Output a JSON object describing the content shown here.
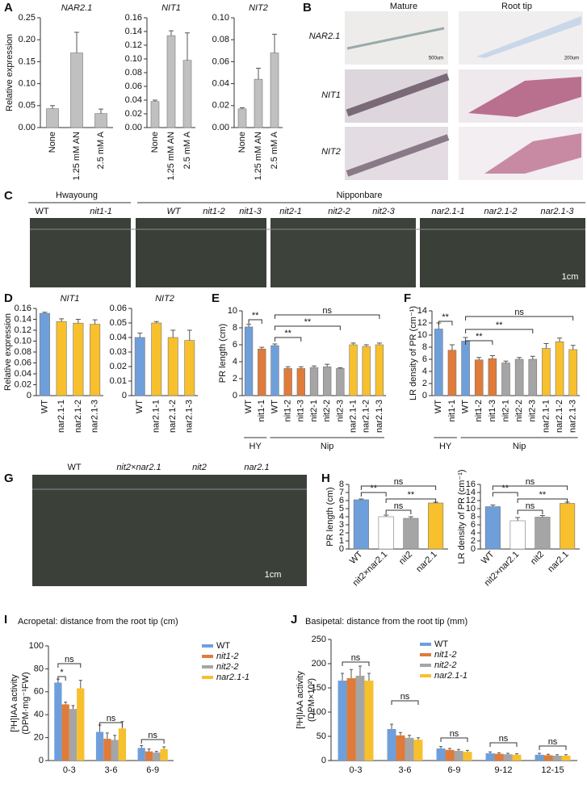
{
  "panel_letters": [
    "A",
    "B",
    "C",
    "D",
    "E",
    "F",
    "G",
    "H",
    "I",
    "J"
  ],
  "photos": {
    "B": {
      "columns": [
        "Mature",
        "Root tip"
      ],
      "rows": [
        "NAR2.1",
        "NIT1",
        "NIT2"
      ],
      "scale_bars": [
        "500um",
        "200um"
      ]
    },
    "C": {
      "groups": [
        "Hwayoung",
        "Nipponbare"
      ],
      "labels": [
        "WT",
        "nit1-1",
        "WT",
        "nit1-2",
        "nit1-3",
        "nit2-1",
        "nit2-2",
        "nit2-3",
        "nar2.1-1",
        "nar2.1-2",
        "nar2.1-3"
      ],
      "scale": "1cm"
    },
    "G": {
      "labels": [
        "WT",
        "nit2×nar2.1",
        "nit2",
        "nar2.1"
      ],
      "scale": "1cm"
    }
  },
  "chart_data": [
    {
      "type": "bar",
      "title": "NAR2.1",
      "ylabel": "Relative expression",
      "categories": [
        "None",
        "1.25 mM AN",
        "2.5 mM A"
      ],
      "values": [
        0.043,
        0.17,
        0.032
      ],
      "errors": [
        0.007,
        0.047,
        0.01
      ],
      "color": "#c0c0c0",
      "ylim": [
        0,
        0.25
      ],
      "yticks": [
        {
          "value": 0,
          "label": "0.00"
        },
        {
          "value": 0.05,
          "label": "0.05"
        },
        {
          "value": 0.1,
          "label": "0.10"
        },
        {
          "value": 0.15,
          "label": "0.15"
        },
        {
          "value": 0.2,
          "label": "0.20"
        },
        {
          "value": 0.25,
          "label": "0.25"
        }
      ]
    },
    {
      "type": "bar",
      "title": "NIT1",
      "categories": [
        "None",
        "1.25 mM AN",
        "2.5 mM A"
      ],
      "values": [
        0.038,
        0.134,
        0.098
      ],
      "errors": [
        0.002,
        0.007,
        0.04
      ],
      "color": "#c0c0c0",
      "ylim": [
        0,
        0.16
      ],
      "yticks": [
        {
          "value": 0,
          "label": "0.00"
        },
        0.02,
        0.04,
        0.06,
        0.08,
        {
          "value": 0.1,
          "label": "0.10"
        },
        0.12,
        0.14,
        0.16
      ]
    },
    {
      "type": "bar",
      "title": "NIT2",
      "categories": [
        "None",
        "1.25 mM AN",
        "2.5 mM A"
      ],
      "values": [
        0.017,
        0.044,
        0.068
      ],
      "errors": [
        0.001,
        0.01,
        0.017
      ],
      "color": "#c0c0c0",
      "ylim": [
        0,
        0.1
      ],
      "yticks": [
        {
          "value": 0,
          "label": "0.00"
        },
        0.02,
        0.04,
        0.06,
        0.08,
        {
          "value": 0.1,
          "label": "0.10"
        }
      ]
    },
    {
      "type": "bar",
      "title": "NIT1",
      "ylabel": "Relative expression",
      "categories": [
        "WT",
        "nar2.1-1",
        "nar2.1-2",
        "nar2.1-3"
      ],
      "values": [
        0.151,
        0.136,
        0.133,
        0.131
      ],
      "errors": [
        0.002,
        0.005,
        0.007,
        0.008
      ],
      "colors": [
        "#6f9fdb",
        "#f7c02c",
        "#f7c02c",
        "#f7c02c"
      ],
      "ylim": [
        0,
        0.16
      ],
      "yticks": [
        0,
        0.02,
        0.04,
        0.06,
        0.08,
        {
          "value": 0.1,
          "label": "0.10"
        },
        0.12,
        0.14,
        0.16
      ]
    },
    {
      "type": "bar",
      "title": "NIT2",
      "categories": [
        "WT",
        "nar2.1-1",
        "nar2.1-2",
        "nar2.1-3"
      ],
      "values": [
        0.04,
        0.05,
        0.04,
        0.038
      ],
      "errors": [
        0.003,
        0.001,
        0.005,
        0.007
      ],
      "colors": [
        "#6f9fdb",
        "#f7c02c",
        "#f7c02c",
        "#f7c02c"
      ],
      "ylim": [
        0,
        0.06
      ],
      "yticks": [
        0,
        0.01,
        0.02,
        0.03,
        0.04,
        0.05,
        0.06
      ]
    },
    {
      "type": "bar",
      "ylabel": "PR length (cm)",
      "categories": [
        "WT",
        "nit1-1",
        "WT",
        "nit1-2",
        "nit1-3",
        "nit2-1",
        "nit2-2",
        "nit2-3",
        "nar2.1-1",
        "nar2.1-2",
        "nar2.1-3"
      ],
      "values": [
        8.1,
        5.5,
        5.9,
        3.2,
        3.2,
        3.3,
        3.4,
        3.2,
        6.0,
        5.8,
        6.0
      ],
      "errors": [
        0.3,
        0.2,
        0.2,
        0.2,
        0.2,
        0.2,
        0.3,
        0.1,
        0.2,
        0.2,
        0.2
      ],
      "colors": [
        "#6f9fdb",
        "#e07b39",
        "#6f9fdb",
        "#e07b39",
        "#e07b39",
        "#a5a5a5",
        "#a5a5a5",
        "#a5a5a5",
        "#f7c02c",
        "#f7c02c",
        "#f7c02c"
      ],
      "ylim": [
        0,
        10
      ],
      "yticks": [
        0,
        2,
        4,
        6,
        8,
        10
      ],
      "annotations": [
        "**",
        "**",
        "**",
        "ns"
      ],
      "group_labels": [
        "HY",
        "Nip"
      ]
    },
    {
      "type": "bar",
      "ylabel": "LR density of PR (cm⁻¹)",
      "categories": [
        "WT",
        "nit1-1",
        "WT",
        "nit1-2",
        "nit1-3",
        "nit2-1",
        "nit2-2",
        "nit2-3",
        "nar2.1-1",
        "nar2.1-2",
        "nar2.1-3"
      ],
      "values": [
        11.0,
        7.5,
        9.0,
        5.9,
        6.1,
        5.4,
        6.0,
        6.0,
        7.8,
        8.9,
        7.6
      ],
      "errors": [
        1.0,
        0.9,
        0.6,
        0.4,
        0.5,
        0.3,
        0.3,
        0.5,
        0.8,
        0.6,
        0.7
      ],
      "colors": [
        "#6f9fdb",
        "#e07b39",
        "#6f9fdb",
        "#e07b39",
        "#e07b39",
        "#a5a5a5",
        "#a5a5a5",
        "#a5a5a5",
        "#f7c02c",
        "#f7c02c",
        "#f7c02c"
      ],
      "ylim": [
        0,
        14
      ],
      "yticks": [
        0,
        2,
        4,
        6,
        8,
        10,
        12,
        14
      ],
      "annotations": [
        "**",
        "**",
        "**",
        "ns"
      ],
      "group_labels": [
        "HY",
        "Nip"
      ]
    },
    {
      "type": "bar",
      "ylabel": "PR length (cm)",
      "categories": [
        "WT",
        "nit2×nar2.1",
        "nit2",
        "nar2.1"
      ],
      "values": [
        6.1,
        4.0,
        3.8,
        5.7
      ],
      "errors": [
        0.1,
        0.2,
        0.2,
        0.1
      ],
      "colors": [
        "#6f9fdb",
        "#ffffff",
        "#a5a5a5",
        "#f7c02c"
      ],
      "ylim": [
        0,
        8
      ],
      "yticks": [
        0,
        1,
        2,
        3,
        4,
        5,
        6,
        7,
        8
      ],
      "annotations": [
        "ns",
        "**",
        "**",
        "ns"
      ]
    },
    {
      "type": "bar",
      "ylabel": "LR density of PR (cm⁻¹)",
      "categories": [
        "WT",
        "nit2×nar2.1",
        "nit2",
        "nar2.1"
      ],
      "values": [
        10.5,
        7.0,
        7.9,
        11.3
      ],
      "errors": [
        0.4,
        0.8,
        0.4,
        0.3
      ],
      "colors": [
        "#6f9fdb",
        "#ffffff",
        "#a5a5a5",
        "#f7c02c"
      ],
      "ylim": [
        0,
        16
      ],
      "yticks": [
        0,
        2,
        4,
        6,
        8,
        10,
        12,
        14,
        16
      ],
      "annotations": [
        "ns",
        "**",
        "**",
        "ns"
      ]
    },
    {
      "type": "grouped_bar",
      "title": "Acropetal: distance from the root tip (cm)",
      "ylabel": [
        "[³H]IAA activity",
        "(DPM·mg⁻¹FW)"
      ],
      "categories": [
        "0-3",
        "3-6",
        "6-9"
      ],
      "series": [
        {
          "name": "WT",
          "color": "#6f9fdb",
          "values": [
            68,
            25,
            11
          ],
          "errors": [
            3,
            6,
            2
          ]
        },
        {
          "name": "nit1-2",
          "color": "#e07b39",
          "values": [
            49,
            19,
            8
          ],
          "errors": [
            2,
            5,
            2
          ]
        },
        {
          "name": "nit2-2",
          "color": "#a5a5a5",
          "values": [
            45,
            18,
            7
          ],
          "errors": [
            3,
            4,
            1
          ]
        },
        {
          "name": "nar2.1-1",
          "color": "#f7c02c",
          "values": [
            63,
            28,
            10
          ],
          "errors": [
            7,
            6,
            2
          ]
        }
      ],
      "ylim": [
        0,
        100
      ],
      "yticks": [
        0,
        20,
        40,
        60,
        80,
        100
      ],
      "annotations": [
        "ns",
        "*",
        "ns",
        "ns"
      ]
    },
    {
      "type": "grouped_bar",
      "title": "Basipetal: distance from the root tip (mm)",
      "ylabel": [
        "[³H]IAA activity",
        "(DPM×10²)"
      ],
      "categories": [
        "0-3",
        "3-6",
        "6-9",
        "9-12",
        "12-15"
      ],
      "series": [
        {
          "name": "WT",
          "color": "#6f9fdb",
          "values": [
            165,
            65,
            25,
            15,
            12
          ],
          "errors": [
            15,
            10,
            4,
            3,
            3
          ]
        },
        {
          "name": "nit1-2",
          "color": "#e07b39",
          "values": [
            170,
            52,
            22,
            14,
            11
          ],
          "errors": [
            18,
            6,
            3,
            2,
            2
          ]
        },
        {
          "name": "nit2-2",
          "color": "#a5a5a5",
          "values": [
            175,
            47,
            20,
            13,
            10
          ],
          "errors": [
            20,
            5,
            3,
            2,
            2
          ]
        },
        {
          "name": "nar2.1-1",
          "color": "#f7c02c",
          "values": [
            165,
            43,
            18,
            12,
            10
          ],
          "errors": [
            15,
            4,
            3,
            2,
            2
          ]
        }
      ],
      "ylim": [
        0,
        250
      ],
      "yticks": [
        0,
        50,
        100,
        150,
        200,
        250
      ],
      "annotations": [
        "ns",
        "ns",
        "ns",
        "ns",
        "ns"
      ]
    }
  ]
}
